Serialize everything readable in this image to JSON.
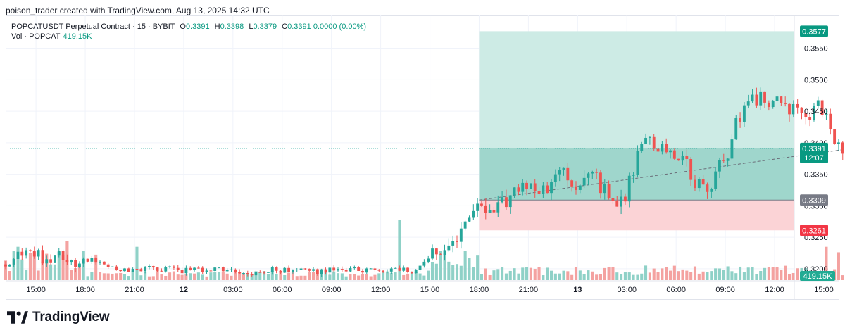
{
  "header": {
    "caption": "poison_trader created with TradingView.com, Aug 13, 2025 14:32 UTC"
  },
  "legend": {
    "symbol": "POPCATUSDT Perpetual Contract · 15 · BYBIT",
    "open_label": "O",
    "open": "0.3391",
    "high_label": "H",
    "high": "0.3398",
    "low_label": "L",
    "low": "0.3379",
    "close_label": "C",
    "close": "0.3391",
    "change": "0.0000 (0.00%)",
    "volume_label": "Vol · POPCAT",
    "volume": "419.15K"
  },
  "footer": {
    "brand": "TradingView"
  },
  "colors": {
    "up": "#26a69a",
    "down": "#ef5350",
    "vol_up": "#8fd1c7",
    "vol_down": "#f4a2a0",
    "profit_zone": "#cdebe5",
    "profit_zone_filled": "#9fd6cc",
    "loss_zone": "#fbd3d6",
    "price_line": "#26a69a",
    "badge_green": "#089981",
    "badge_red": "#f23645",
    "badge_gray": "#787b86"
  },
  "chart_data": {
    "type": "candlestick",
    "symbol": "POPCATUSDT",
    "exchange": "BYBIT",
    "interval": "15",
    "y_axis": {
      "range": [
        0.3182,
        0.3602
      ],
      "ticks": [
        "0.3200",
        "0.3250",
        "0.3300",
        "0.3350",
        "0.3400",
        "0.3450",
        "0.3500",
        "0.3550"
      ]
    },
    "x_axis": {
      "range_hours": [
        -1.85,
        46.2
      ],
      "ticks": [
        {
          "h": 0,
          "label": "15:00"
        },
        {
          "h": 3,
          "label": "18:00"
        },
        {
          "h": 6,
          "label": "21:00"
        },
        {
          "h": 9,
          "label": "12"
        },
        {
          "h": 12,
          "label": "03:00"
        },
        {
          "h": 15,
          "label": "06:00"
        },
        {
          "h": 18,
          "label": "09:00"
        },
        {
          "h": 21,
          "label": "12:00"
        },
        {
          "h": 24,
          "label": "15:00"
        },
        {
          "h": 27,
          "label": "18:00"
        },
        {
          "h": 30,
          "label": "21:00"
        },
        {
          "h": 33,
          "label": "13"
        },
        {
          "h": 36,
          "label": "03:00"
        },
        {
          "h": 39,
          "label": "06:00"
        },
        {
          "h": 42,
          "label": "09:00"
        },
        {
          "h": 45,
          "label": "12:00"
        },
        {
          "h": 48,
          "label": "15:00"
        },
        {
          "h": 51,
          "label": "18:00"
        },
        {
          "h": 54,
          "label": "21:00"
        }
      ],
      "bold_labels": [
        "12",
        "13"
      ]
    },
    "price_anchors": [
      [
        -1.85,
        0.3207
      ],
      [
        -0.5,
        0.3235
      ],
      [
        0.5,
        0.3212
      ],
      [
        1.5,
        0.3228
      ],
      [
        2.5,
        0.3204
      ],
      [
        3.5,
        0.3218
      ],
      [
        5.0,
        0.3197
      ],
      [
        7.0,
        0.3203
      ],
      [
        9.0,
        0.3196
      ],
      [
        11.0,
        0.32
      ],
      [
        13.0,
        0.3194
      ],
      [
        15.0,
        0.3199
      ],
      [
        17.0,
        0.3196
      ],
      [
        19.0,
        0.3201
      ],
      [
        21.0,
        0.3197
      ],
      [
        22.0,
        0.3202
      ],
      [
        23.0,
        0.3196
      ],
      [
        24.0,
        0.3214
      ],
      [
        25.0,
        0.3236
      ],
      [
        26.0,
        0.3268
      ],
      [
        27.0,
        0.3305
      ],
      [
        28.0,
        0.329
      ],
      [
        29.0,
        0.3316
      ],
      [
        30.0,
        0.3338
      ],
      [
        31.0,
        0.3322
      ],
      [
        32.0,
        0.3348
      ],
      [
        33.0,
        0.3336
      ],
      [
        34.0,
        0.3344
      ],
      [
        35.0,
        0.331
      ],
      [
        35.7,
        0.3302
      ],
      [
        36.5,
        0.3372
      ],
      [
        37.0,
        0.3418
      ],
      [
        38.0,
        0.3398
      ],
      [
        39.0,
        0.3388
      ],
      [
        40.0,
        0.3348
      ],
      [
        40.6,
        0.3322
      ],
      [
        41.5,
        0.3352
      ],
      [
        42.0,
        0.3372
      ],
      [
        42.6,
        0.343
      ],
      [
        43.5,
        0.3458
      ],
      [
        44.2,
        0.3475
      ],
      [
        45.0,
        0.3468
      ],
      [
        46.0,
        0.3452
      ],
      [
        47.0,
        0.3445
      ],
      [
        47.5,
        0.346
      ],
      [
        48.0,
        0.3452
      ],
      [
        48.6,
        0.341
      ],
      [
        49.2,
        0.3385
      ],
      [
        49.7,
        0.3391
      ]
    ],
    "volume_bars_hours": [
      -1.85,
      49.7
    ],
    "volume_spikes": [
      {
        "h": -1.2,
        "v": 0.55
      },
      {
        "h": -0.3,
        "v": 0.45
      },
      {
        "h": 1.8,
        "v": 0.65
      },
      {
        "h": 3.6,
        "v": 0.42
      },
      {
        "h": 6.2,
        "v": 0.55
      },
      {
        "h": 22.2,
        "v": 1.0
      },
      {
        "h": 48.1,
        "v": 0.55
      },
      {
        "h": 48.8,
        "v": 0.46
      },
      {
        "h": 49.3,
        "v": 0.53
      }
    ],
    "last_price": "0.3391",
    "last_price_countdown": "12:07",
    "last_volume": "419.15K",
    "long_position": {
      "start_hour": 27.0,
      "end_hour": 46.2,
      "entry": 0.3309,
      "take_profit": 0.3577,
      "stop_loss": 0.3261,
      "entry_label": "0.3309",
      "take_profit_label": "0.3577",
      "stop_loss_label": "0.3261"
    }
  }
}
